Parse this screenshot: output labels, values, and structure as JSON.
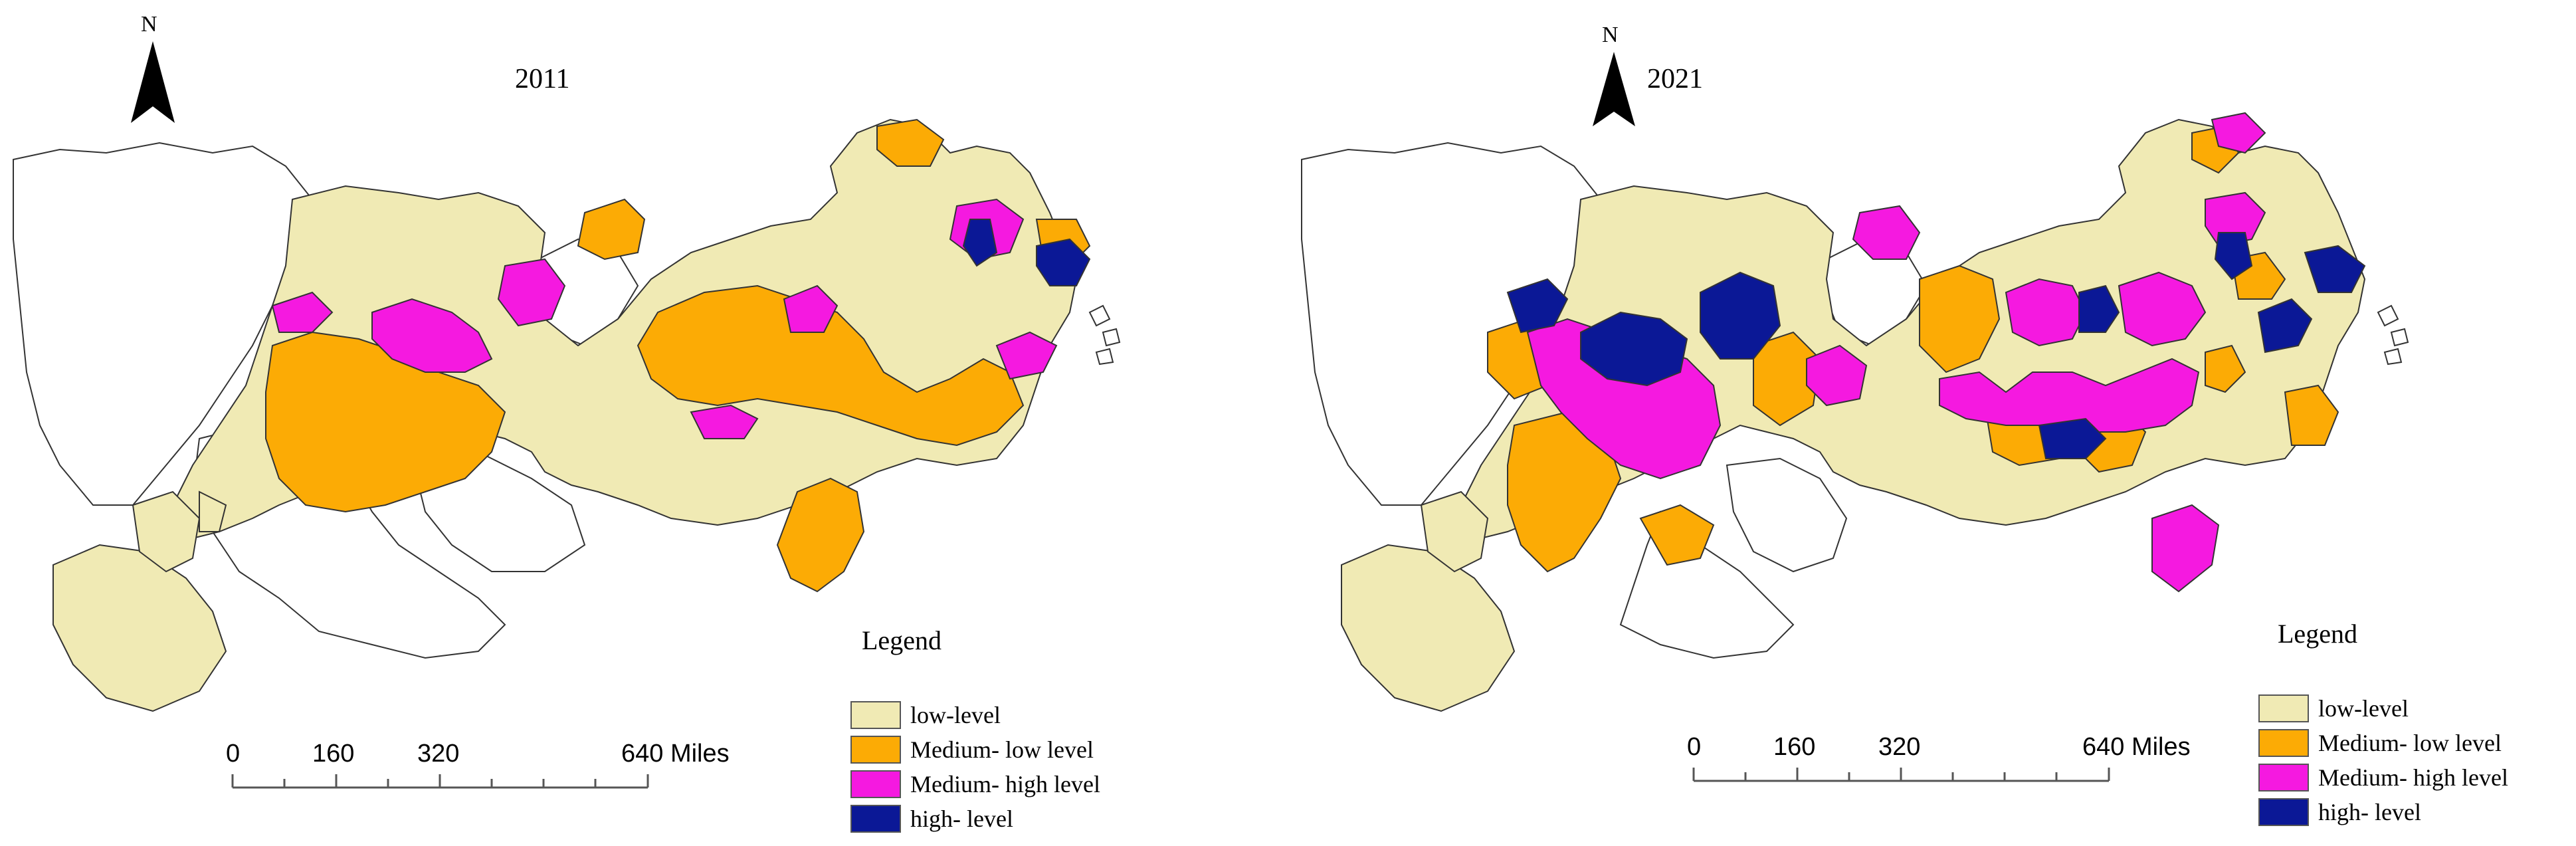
{
  "panels": [
    {
      "year": "2011",
      "north": "N",
      "legend_title": "Legend",
      "scale": {
        "ticks": [
          "0",
          "160",
          "320",
          "640 Miles"
        ]
      }
    },
    {
      "year": "2021",
      "north": "N",
      "legend_title": "Legend",
      "scale": {
        "ticks": [
          "0",
          "160",
          "320",
          "640 Miles"
        ]
      }
    }
  ],
  "legend": [
    {
      "label": "low-level",
      "color": "#f0eab4"
    },
    {
      "label": "Medium- low level",
      "color": "#fcab05"
    },
    {
      "label": "Medium- high level",
      "color": "#f519e0"
    },
    {
      "label": "high- level",
      "color": "#0b1896"
    }
  ],
  "map_colors": {
    "none": "#ffffff",
    "border": "#333333"
  }
}
